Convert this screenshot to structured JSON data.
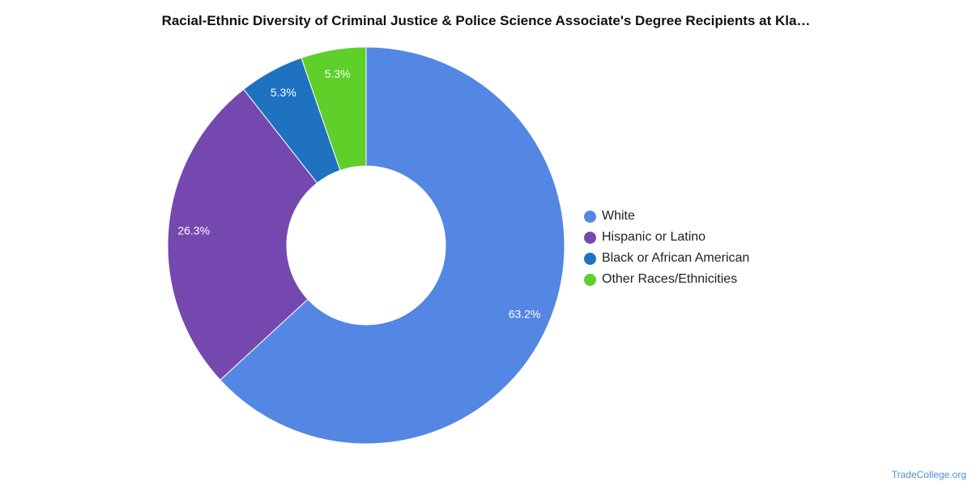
{
  "title": "Racial-Ethnic Diversity of Criminal Justice & Police Science Associate's Degree Recipients at Kla…",
  "watermark": "TradeCollege.org",
  "chart_data": {
    "type": "pie",
    "variant": "donut",
    "title": "Racial-Ethnic Diversity of Criminal Justice & Police Science Associate's Degree Recipients at Kla…",
    "legend_position": "right",
    "slices": [
      {
        "label": "White",
        "value": 63.2,
        "display": "63.2%",
        "color": "#5486e3"
      },
      {
        "label": "Hispanic or Latino",
        "value": 26.3,
        "display": "26.3%",
        "color": "#7548b0"
      },
      {
        "label": "Black or African American",
        "value": 5.3,
        "display": "5.3%",
        "color": "#1f72bf"
      },
      {
        "label": "Other Races/Ethnicities",
        "value": 5.3,
        "display": "5.3%",
        "color": "#5fcf2a"
      }
    ]
  }
}
